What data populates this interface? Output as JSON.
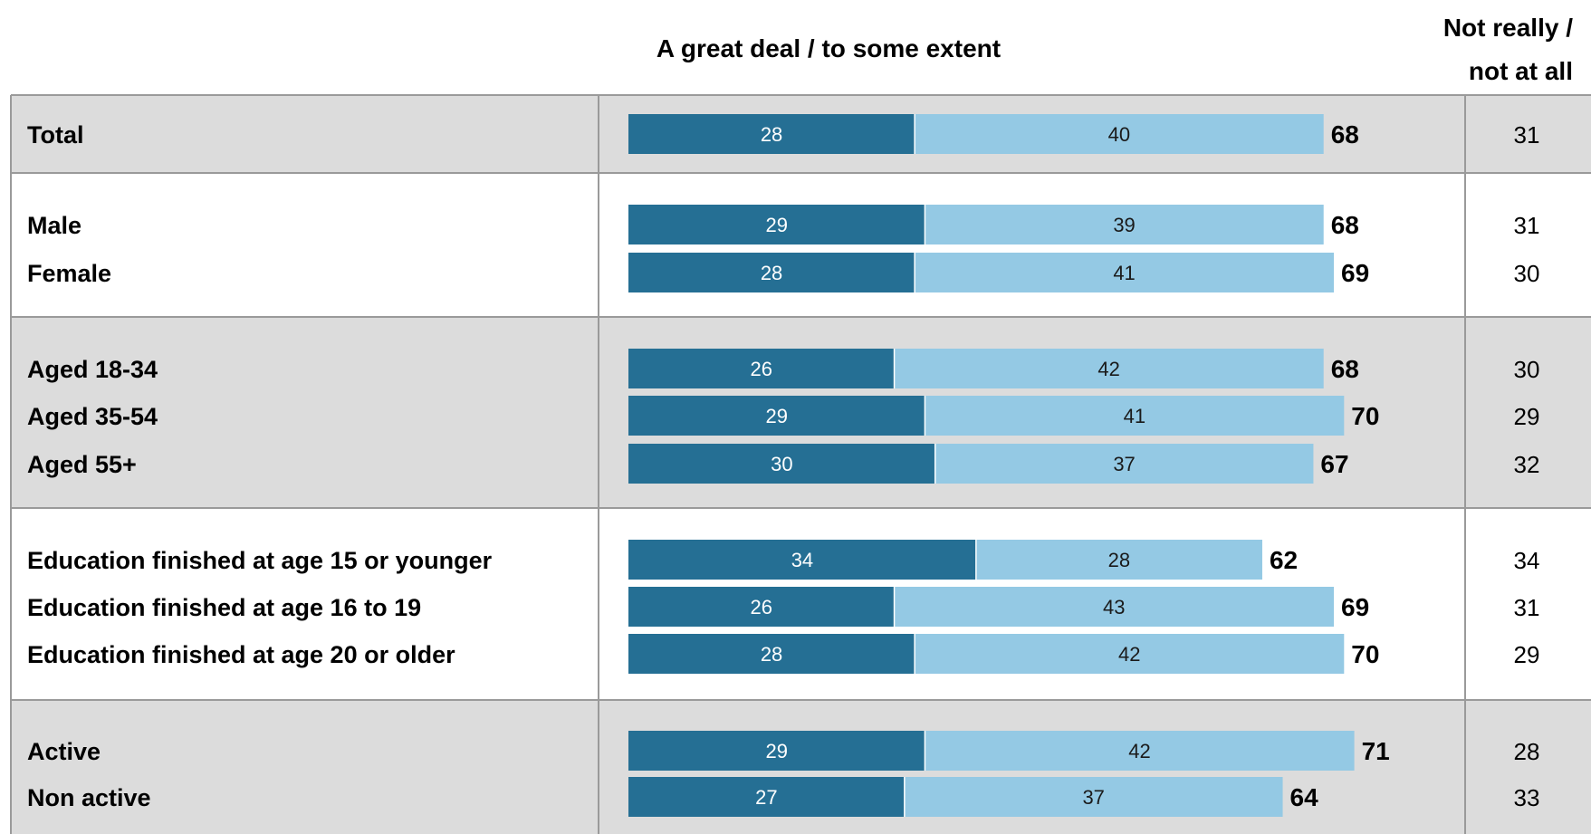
{
  "header": {
    "positive": "A great deal / to some extent",
    "negative_line1": "Not really /",
    "negative_line2": "not at all"
  },
  "colors": {
    "dark": "#256f94",
    "light": "#94c9e4",
    "band": "#dcdcdc",
    "rule": "#9a9a9a"
  },
  "chart_data": {
    "type": "bar",
    "stacked": true,
    "orientation": "horizontal",
    "xlim": [
      0,
      100
    ],
    "series": [
      {
        "name": "",
        "values": [
          28,
          29,
          28,
          26,
          29,
          30,
          34,
          26,
          28,
          29,
          27
        ]
      },
      {
        "name": "",
        "values": [
          40,
          39,
          41,
          42,
          41,
          37,
          28,
          43,
          42,
          42,
          37
        ]
      }
    ],
    "groups": [
      {
        "shaded": true,
        "rows": [
          {
            "label": "Total",
            "dark": 28,
            "light": 40,
            "total": 68,
            "negative": 31
          }
        ]
      },
      {
        "shaded": false,
        "rows": [
          {
            "label": "Male",
            "dark": 29,
            "light": 39,
            "total": 68,
            "negative": 31
          },
          {
            "label": "Female",
            "dark": 28,
            "light": 41,
            "total": 69,
            "negative": 30
          }
        ]
      },
      {
        "shaded": true,
        "rows": [
          {
            "label": "Aged 18-34",
            "dark": 26,
            "light": 42,
            "total": 68,
            "negative": 30
          },
          {
            "label": "Aged 35-54",
            "dark": 29,
            "light": 41,
            "total": 70,
            "negative": 29
          },
          {
            "label": "Aged 55+",
            "dark": 30,
            "light": 37,
            "total": 67,
            "negative": 32
          }
        ]
      },
      {
        "shaded": false,
        "rows": [
          {
            "label": "Education finished at age 15 or younger",
            "dark": 34,
            "light": 28,
            "total": 62,
            "negative": 34
          },
          {
            "label": "Education finished at age 16 to 19",
            "dark": 26,
            "light": 43,
            "total": 69,
            "negative": 31
          },
          {
            "label": "Education finished at age 20 or older",
            "dark": 28,
            "light": 42,
            "total": 70,
            "negative": 29
          }
        ]
      },
      {
        "shaded": true,
        "rows": [
          {
            "label": "Active",
            "dark": 29,
            "light": 42,
            "total": 71,
            "negative": 28
          },
          {
            "label": "Non active",
            "dark": 27,
            "light": 37,
            "total": 64,
            "negative": 33
          }
        ]
      }
    ]
  }
}
